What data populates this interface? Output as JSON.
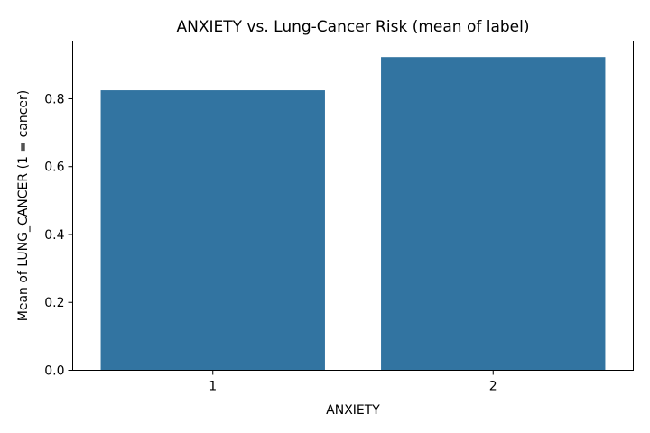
{
  "chart_data": {
    "type": "bar",
    "title": "ANXIETY vs. Lung-Cancer Risk (mean of label)",
    "xlabel": "ANXIETY",
    "ylabel": "Mean of LUNG_CANCER (1 = cancer)",
    "categories": [
      "1",
      "2"
    ],
    "values": [
      0.825,
      0.923
    ],
    "ylim": [
      0,
      0.97
    ],
    "yticks": [
      0.0,
      0.2,
      0.4,
      0.6,
      0.8
    ],
    "ytick_labels": [
      "0.0",
      "0.2",
      "0.4",
      "0.6",
      "0.8"
    ],
    "bar_color": "#3274a1",
    "grid": false,
    "legend": "none"
  }
}
